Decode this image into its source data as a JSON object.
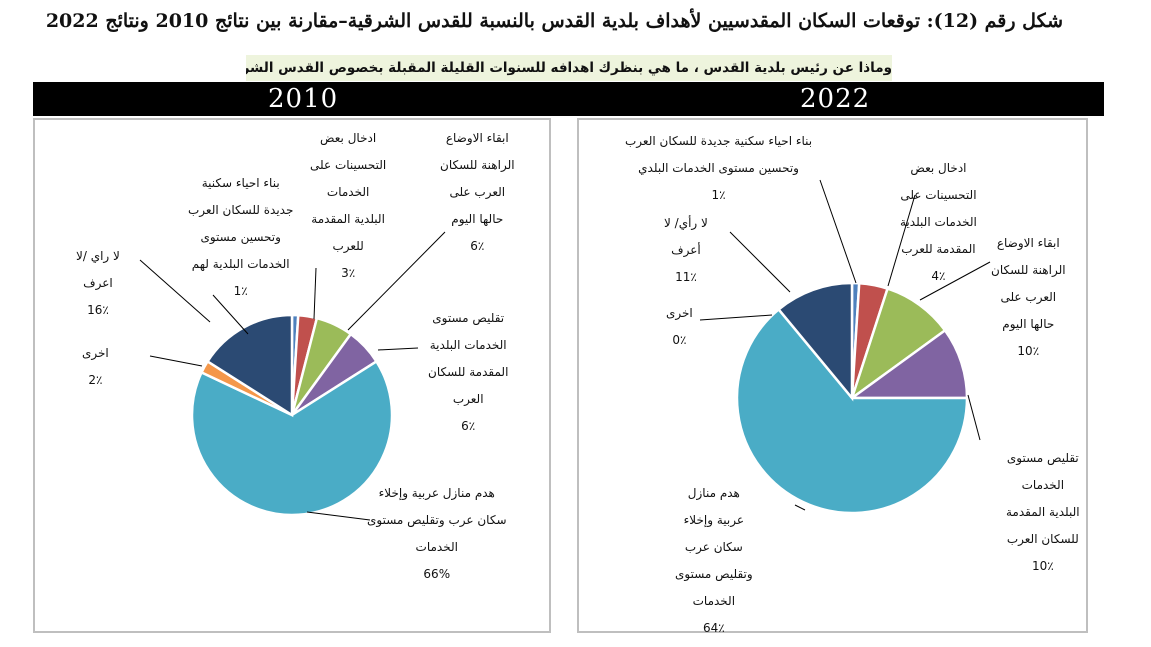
{
  "title": "شكل رقم (12): توقعات السكان المقدسيين لأهداف بلدية القدس بالنسبة للقدس الشرقية–مقارنة بين نتائج 2010 ونتائج 2022",
  "subtitle": "وماذا عن رئيس بلدية القدس ، ما هي بنظرك اهدافه للسنوات القليلة المقبلة بخصوص القدس الشرقية ؟",
  "colors": {
    "header_bar": "#000000",
    "slice_blue": "#4aacc6",
    "slice_navy": "#2b4a73",
    "slice_orange": "#f4974a",
    "slice_purple": "#8064a2",
    "slice_green": "#9bbb59",
    "slice_red": "#c0504d",
    "slice_lightblue": "#4f81bd",
    "leader": "#000000"
  },
  "chart_data": [
    {
      "type": "pie",
      "title": "2010",
      "slices": [
        {
          "label": "بناء احياء سكنية جديدة للسكان العرب وتحسين مستوى الخدمات البلدية لهم",
          "value": 1,
          "display": "1٪",
          "color": "#4f81bd"
        },
        {
          "label": "ادخال بعض التحسينات على الخدمات البلدية المقدمة للعرب",
          "value": 3,
          "display": "3٪",
          "color": "#c0504d"
        },
        {
          "label": "ابقاء الاوضاع الراهنة للسكان العرب على حالها اليوم",
          "value": 6,
          "display": "6٪",
          "color": "#9bbb59"
        },
        {
          "label": "تقليص مستوى الخدمات البلدية المقدمة للسكان العرب",
          "value": 6,
          "display": "6٪",
          "color": "#8064a2"
        },
        {
          "label": "هدم منازل عربية وإخلاء سكان عرب وتقليص مستوى الخدمات",
          "value": 66,
          "display": "66%",
          "color": "#4aacc6"
        },
        {
          "label": "اخرى",
          "value": 2,
          "display": "2٪",
          "color": "#f4974a"
        },
        {
          "label": "لا راي /لا اعرف",
          "value": 16,
          "display": "16٪",
          "color": "#2b4a73"
        }
      ]
    },
    {
      "type": "pie",
      "title": "2022",
      "slices": [
        {
          "label": "بناء احياء سكنية جديدة للسكان العرب وتحسين مستوى الخدمات البلدي",
          "value": 1,
          "display": "1٪",
          "color": "#4f81bd"
        },
        {
          "label": "ادخال بعض التحسينات على الخدمات البلدية المقدمة للعرب",
          "value": 4,
          "display": "4٪",
          "color": "#c0504d"
        },
        {
          "label": "ابقاء الاوضاع الراهنة للسكان العرب على حالها اليوم",
          "value": 10,
          "display": "10٪",
          "color": "#9bbb59"
        },
        {
          "label": "تقليص مستوى الخدمات البلدية المقدمة للسكان العرب",
          "value": 10,
          "display": "10٪",
          "color": "#8064a2"
        },
        {
          "label": "هدم منازل عربية وإخلاء سكان عرب وتقليص مستوى الخدمات",
          "value": 64,
          "display": "64٪",
          "color": "#4aacc6"
        },
        {
          "label": "اخرى",
          "value": 0,
          "display": "0٪",
          "color": "#f4974a"
        },
        {
          "label": "لا رأي/ لا أعرف",
          "value": 11,
          "display": "11٪",
          "color": "#2b4a73"
        }
      ]
    }
  ],
  "labels_2010": [
    {
      "lines": [
        "بناء احياء سكنية",
        "جديدة للسكان العرب",
        "وتحسين مستوى",
        "الخدمات البلدية لهم"
      ],
      "pct": "1٪"
    },
    {
      "lines": [
        "ادخال بعض",
        "التحسينات على",
        "الخدمات",
        "البلدية المقدمة",
        "للعرب"
      ],
      "pct": "3٪"
    },
    {
      "lines": [
        "ابقاء الاوضاع",
        "الراهنة للسكان",
        "العرب على",
        "حالها اليوم"
      ],
      "pct": "6٪"
    },
    {
      "lines": [
        "تقليص مستوى",
        "الخدمات البلدية",
        "المقدمة للسكان",
        "العرب"
      ],
      "pct": "6٪"
    },
    {
      "lines": [
        "هدم منازل عربية وإخلاء",
        "سكان عرب وتقليص مستوى",
        "الخدمات"
      ],
      "pct": "66%"
    },
    {
      "lines": [
        "اخرى"
      ],
      "pct": "2٪"
    },
    {
      "lines": [
        "لا راي /لا",
        "اعرف"
      ],
      "pct": "16٪"
    }
  ],
  "labels_2022": [
    {
      "lines": [
        "بناء احياء سكنية جديدة للسكان العرب",
        "وتحسين مستوى الخدمات البلدي"
      ],
      "pct": "1٪"
    },
    {
      "lines": [
        "ادخال بعض",
        "التحسينات على",
        "الخدمات البلدية",
        "المقدمة للعرب"
      ],
      "pct": "4٪"
    },
    {
      "lines": [
        "ابقاء الاوضاع",
        "الراهنة للسكان",
        "العرب على",
        "حالها اليوم"
      ],
      "pct": "10٪"
    },
    {
      "lines": [
        "تقليص مستوى",
        "الخدمات",
        "البلدية المقدمة",
        "للسكان العرب"
      ],
      "pct": "10٪"
    },
    {
      "lines": [
        "هدم منازل",
        "عربية وإخلاء",
        "سكان عرب",
        "وتقليص مستوى",
        "الخدمات"
      ],
      "pct": "64٪"
    },
    {
      "lines": [
        "اخرى"
      ],
      "pct": "0٪"
    },
    {
      "lines": [
        "لا رأي/ لا",
        "أعرف"
      ],
      "pct": "11٪"
    }
  ]
}
